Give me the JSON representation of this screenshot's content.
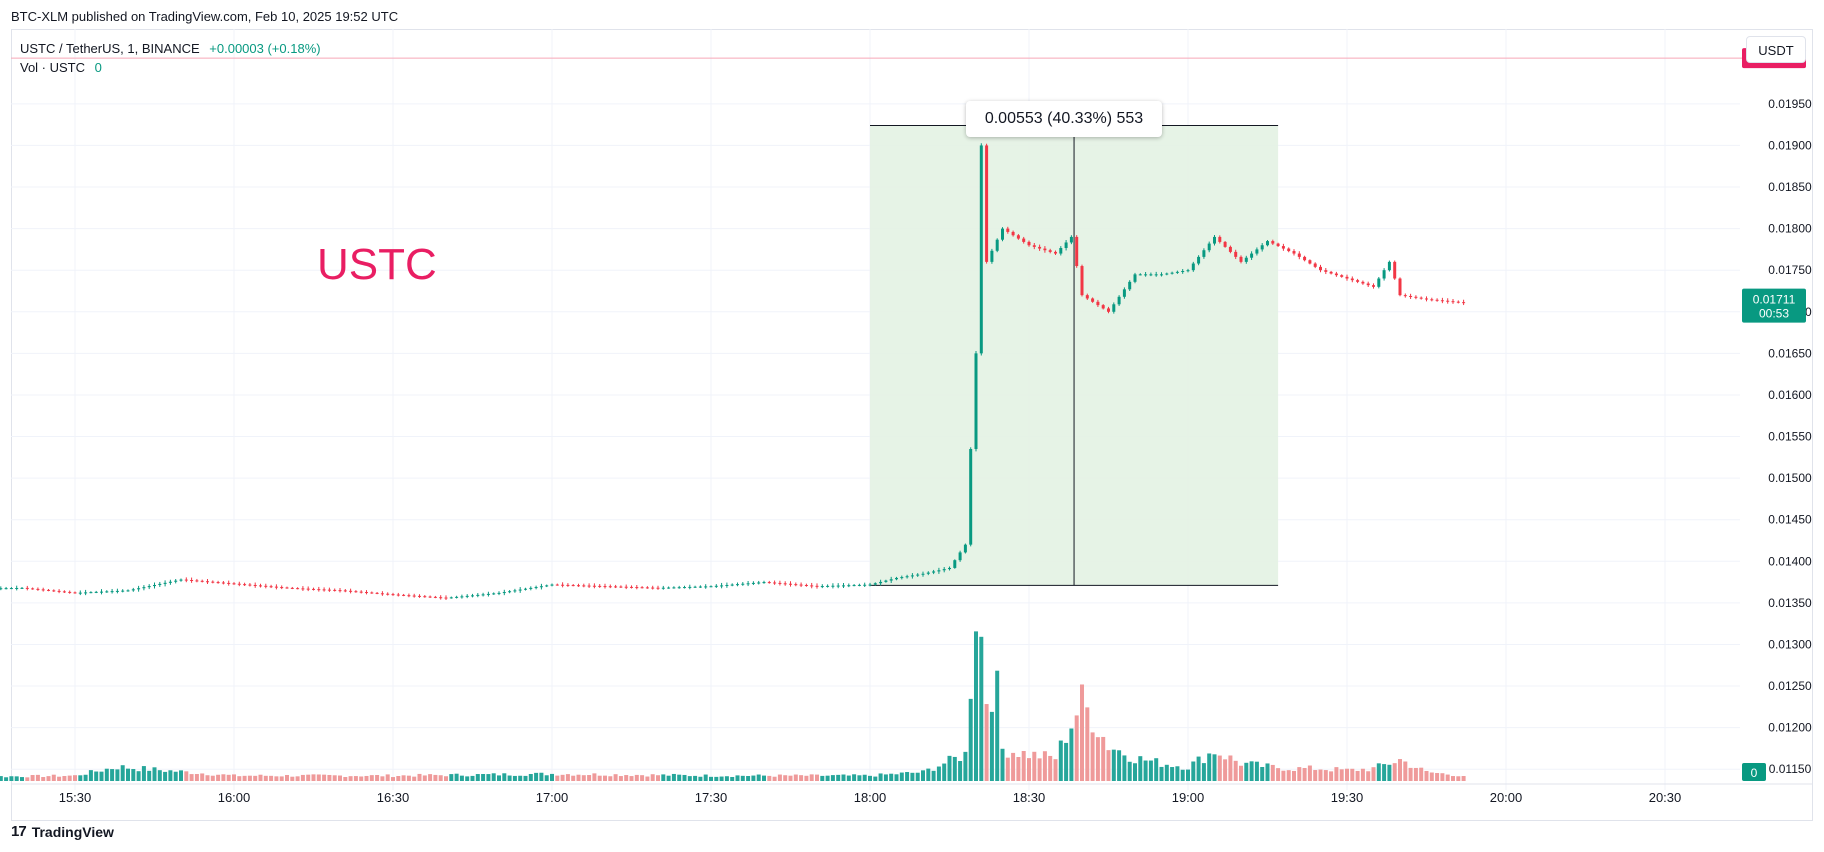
{
  "header": {
    "publish_line": "BTC-XLM published on TradingView.com, Feb 10, 2025 19:52 UTC"
  },
  "legend": {
    "symbol": "USTC / TetherUS, 1, BINANCE",
    "change": "+0.00003 (+0.18%)",
    "volume_label": "Vol · USTC",
    "volume_value": "0"
  },
  "currency_button": "USDT",
  "annotation_text": "USTC",
  "measure_label": "0.00553 (40.33%) 553",
  "footer": {
    "brand": "TradingView"
  },
  "colors": {
    "up": "#089981",
    "down": "#f23645",
    "volume_up": "#26a69a",
    "volume_down": "#ef9a9a",
    "measure_fill": "#e3f2e3",
    "ustc_label": "#e91e63",
    "alert_badge": "#e91e63",
    "price_badge": "#089981"
  },
  "chart_data": {
    "type": "candlestick",
    "title": "USTC / TetherUS, 1, BINANCE",
    "y_axis": {
      "ticks": [
        "0.01950",
        "0.01900",
        "0.01850",
        "0.01800",
        "0.01750",
        "0.01700",
        "0.01650",
        "0.01600",
        "0.01550",
        "0.01500",
        "0.01450",
        "0.01400",
        "0.01350",
        "0.01300",
        "0.01250",
        "0.01200",
        "0.01150"
      ],
      "range": [
        0.01125,
        0.0204
      ]
    },
    "x_axis": {
      "ticks": [
        "15:30",
        "16:00",
        "16:30",
        "17:00",
        "17:30",
        "18:00",
        "18:30",
        "19:00",
        "19:30",
        "20:00",
        "20:30"
      ]
    },
    "current_price": {
      "label": "0.01711",
      "countdown": "00:53",
      "value": 0.01711
    },
    "alert_price": {
      "label": "0.02005",
      "value": 0.02005
    },
    "volume_badge": "0",
    "measure": {
      "start_time": "18:00",
      "end_time": "19:17",
      "low": 0.01371,
      "high": 0.01924,
      "change": 0.00553,
      "percent": 40.33,
      "ticks": 553
    },
    "price_path": [
      [
        "15:00",
        0.0137
      ],
      [
        "15:10",
        0.01367
      ],
      [
        "15:20",
        0.01368
      ],
      [
        "15:30",
        0.01362
      ],
      [
        "15:40",
        0.01365
      ],
      [
        "15:50",
        0.01378
      ],
      [
        "16:00",
        0.01373
      ],
      [
        "16:10",
        0.01368
      ],
      [
        "16:20",
        0.01365
      ],
      [
        "16:30",
        0.0136
      ],
      [
        "16:40",
        0.01356
      ],
      [
        "16:50",
        0.01362
      ],
      [
        "17:00",
        0.01372
      ],
      [
        "17:10",
        0.0137
      ],
      [
        "17:20",
        0.01368
      ],
      [
        "17:30",
        0.0137
      ],
      [
        "17:40",
        0.01375
      ],
      [
        "17:50",
        0.0137
      ],
      [
        "18:00",
        0.01372
      ],
      [
        "18:05",
        0.0138
      ],
      [
        "18:10",
        0.01385
      ],
      [
        "18:15",
        0.01392
      ],
      [
        "18:18",
        0.0142
      ],
      [
        "18:20",
        0.0165
      ],
      [
        "18:21",
        0.019
      ],
      [
        "18:22",
        0.0176
      ],
      [
        "18:25",
        0.018
      ],
      [
        "18:30",
        0.0178
      ],
      [
        "18:35",
        0.0177
      ],
      [
        "18:38",
        0.0179
      ],
      [
        "18:40",
        0.0172
      ],
      [
        "18:45",
        0.017
      ],
      [
        "18:50",
        0.01745
      ],
      [
        "18:55",
        0.01745
      ],
      [
        "19:00",
        0.0175
      ],
      [
        "19:05",
        0.0179
      ],
      [
        "19:10",
        0.0176
      ],
      [
        "19:15",
        0.01785
      ],
      [
        "19:20",
        0.0177
      ],
      [
        "19:25",
        0.0175
      ],
      [
        "19:30",
        0.0174
      ],
      [
        "19:35",
        0.0173
      ],
      [
        "19:38",
        0.0176
      ],
      [
        "19:40",
        0.0172
      ],
      [
        "19:45",
        0.01715
      ],
      [
        "19:52",
        0.01711
      ]
    ],
    "volume_path": [
      [
        "15:00",
        0.02
      ],
      [
        "15:30",
        0.03
      ],
      [
        "15:38",
        0.08
      ],
      [
        "16:00",
        0.03
      ],
      [
        "16:30",
        0.03
      ],
      [
        "17:00",
        0.04
      ],
      [
        "17:30",
        0.03
      ],
      [
        "18:00",
        0.03
      ],
      [
        "18:10",
        0.05
      ],
      [
        "18:18",
        0.15
      ],
      [
        "18:19",
        0.56
      ],
      [
        "18:20",
        1.0
      ],
      [
        "18:21",
        0.8
      ],
      [
        "18:22",
        0.48
      ],
      [
        "18:23",
        0.52
      ],
      [
        "18:24",
        0.5
      ],
      [
        "18:25",
        0.18
      ],
      [
        "18:30",
        0.15
      ],
      [
        "18:35",
        0.13
      ],
      [
        "18:40",
        0.45
      ],
      [
        "18:45",
        0.2
      ],
      [
        "18:50",
        0.13
      ],
      [
        "18:55",
        0.1
      ],
      [
        "19:00",
        0.08
      ],
      [
        "19:05",
        0.17
      ],
      [
        "19:10",
        0.1
      ],
      [
        "19:15",
        0.08
      ],
      [
        "19:20",
        0.07
      ],
      [
        "19:25",
        0.07
      ],
      [
        "19:30",
        0.06
      ],
      [
        "19:35",
        0.07
      ],
      [
        "19:40",
        0.12
      ],
      [
        "19:45",
        0.05
      ],
      [
        "19:52",
        0.03
      ]
    ]
  }
}
